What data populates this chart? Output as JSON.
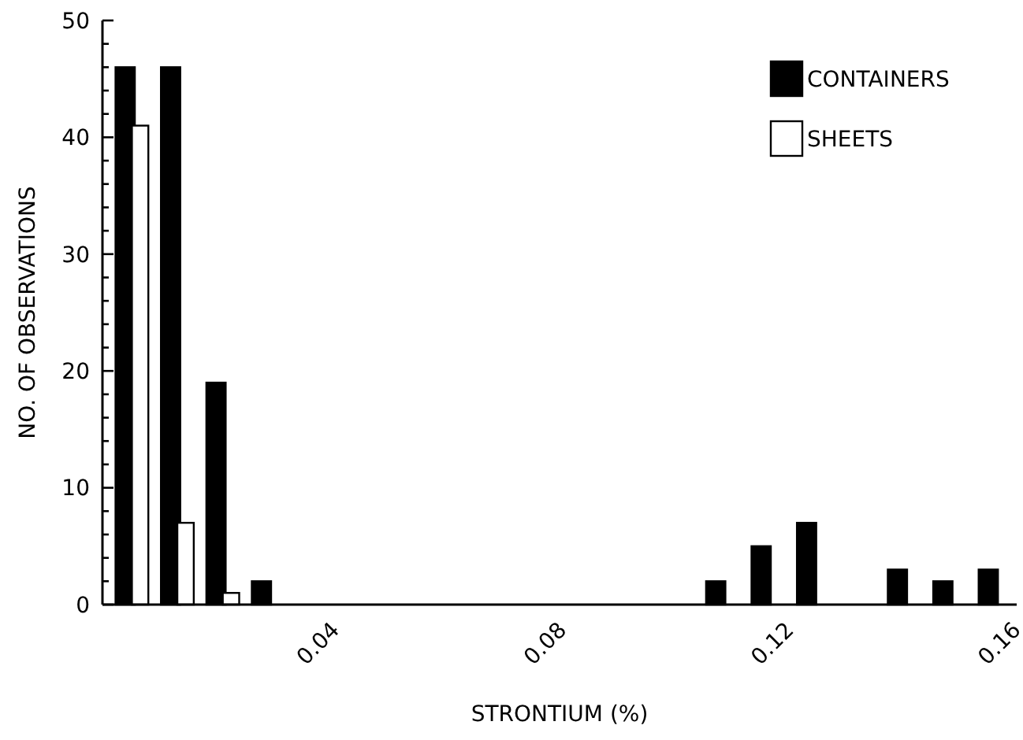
{
  "chart_data": {
    "type": "bar",
    "xlabel": "STRONTIUM (%)",
    "ylabel": "NO. OF OBSERVATIONS",
    "x": [
      0.004,
      0.012,
      0.02,
      0.028,
      0.036,
      0.044,
      0.052,
      0.06,
      0.068,
      0.076,
      0.084,
      0.092,
      0.1,
      0.108,
      0.116,
      0.124,
      0.132,
      0.14,
      0.148,
      0.156
    ],
    "series": [
      {
        "name": "CONTAINERS",
        "color": "#000000",
        "values": [
          46,
          46,
          19,
          2,
          0,
          0,
          0,
          0,
          0,
          0,
          0,
          0,
          0,
          2,
          5,
          7,
          0,
          3,
          2,
          3
        ]
      },
      {
        "name": "SHEETS",
        "color": "#ffffff",
        "values": [
          41,
          7,
          1,
          0,
          0,
          0,
          0,
          0,
          0,
          0,
          0,
          0,
          0,
          0,
          0,
          0,
          0,
          0,
          0,
          0
        ]
      }
    ],
    "xlim": [
      0,
      0.161
    ],
    "xticks": [
      {
        "value": 0.04,
        "label": "0.04"
      },
      {
        "value": 0.08,
        "label": "0.08"
      },
      {
        "value": 0.12,
        "label": "0.12"
      },
      {
        "value": 0.16,
        "label": "0.16"
      }
    ],
    "ylim": [
      0,
      50
    ],
    "yticks": [
      0,
      {
        "value": 2,
        "label": null
      },
      {
        "value": 4,
        "label": null
      },
      {
        "value": 6,
        "label": null
      },
      {
        "value": 8,
        "label": null
      },
      10,
      {
        "value": 12,
        "label": null
      },
      {
        "value": 14,
        "label": null
      },
      {
        "value": 16,
        "label": null
      },
      {
        "value": 18,
        "label": null
      },
      20,
      {
        "value": 22,
        "label": null
      },
      {
        "value": 24,
        "label": null
      },
      {
        "value": 26,
        "label": null
      },
      {
        "value": 28,
        "label": null
      },
      30,
      {
        "value": 32,
        "label": null
      },
      {
        "value": 34,
        "label": null
      },
      {
        "value": 36,
        "label": null
      },
      {
        "value": 38,
        "label": null
      },
      40,
      {
        "value": 42,
        "label": null
      },
      {
        "value": 44,
        "label": null
      },
      {
        "value": 46,
        "label": null
      },
      {
        "value": 48,
        "label": null
      },
      50
    ],
    "legend": "top right",
    "grid": false
  }
}
